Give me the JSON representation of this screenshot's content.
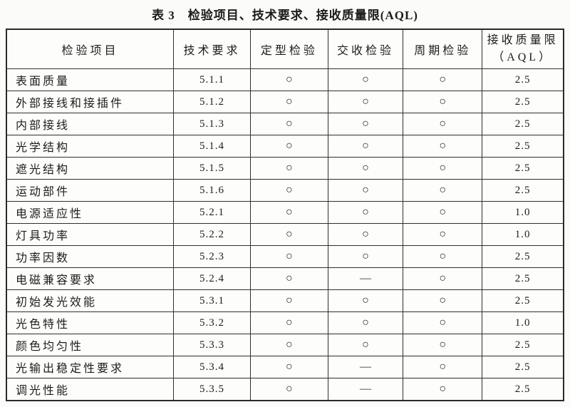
{
  "page": {
    "title": "表 3　检验项目、技术要求、接收质量限(AQL)"
  },
  "table": {
    "headers": {
      "item": "检验项目",
      "requirement": "技术要求",
      "type_test": "定型检验",
      "acceptance_test": "交收检验",
      "periodic_test": "周期检验",
      "aql_line1": "接收质量限",
      "aql_line2": "（AQL）"
    },
    "symbols": {
      "applicable": "○",
      "not_applicable": "—"
    },
    "rows": [
      {
        "item": "表面质量",
        "requirement": "5.1.1",
        "type_test": "○",
        "acceptance_test": "○",
        "periodic_test": "○",
        "aql": "2.5"
      },
      {
        "item": "外部接线和接插件",
        "requirement": "5.1.2",
        "type_test": "○",
        "acceptance_test": "○",
        "periodic_test": "○",
        "aql": "2.5"
      },
      {
        "item": "内部接线",
        "requirement": "5.1.3",
        "type_test": "○",
        "acceptance_test": "○",
        "periodic_test": "○",
        "aql": "2.5"
      },
      {
        "item": "光学结构",
        "requirement": "5.1.4",
        "type_test": "○",
        "acceptance_test": "○",
        "periodic_test": "○",
        "aql": "2.5"
      },
      {
        "item": "遮光结构",
        "requirement": "5.1.5",
        "type_test": "○",
        "acceptance_test": "○",
        "periodic_test": "○",
        "aql": "2.5"
      },
      {
        "item": "运动部件",
        "requirement": "5.1.6",
        "type_test": "○",
        "acceptance_test": "○",
        "periodic_test": "○",
        "aql": "2.5"
      },
      {
        "item": "电源适应性",
        "requirement": "5.2.1",
        "type_test": "○",
        "acceptance_test": "○",
        "periodic_test": "○",
        "aql": "1.0"
      },
      {
        "item": "灯具功率",
        "requirement": "5.2.2",
        "type_test": "○",
        "acceptance_test": "○",
        "periodic_test": "○",
        "aql": "1.0"
      },
      {
        "item": "功率因数",
        "requirement": "5.2.3",
        "type_test": "○",
        "acceptance_test": "○",
        "periodic_test": "○",
        "aql": "2.5"
      },
      {
        "item": "电磁兼容要求",
        "requirement": "5.2.4",
        "type_test": "○",
        "acceptance_test": "—",
        "periodic_test": "○",
        "aql": "2.5"
      },
      {
        "item": "初始发光效能",
        "requirement": "5.3.1",
        "type_test": "○",
        "acceptance_test": "○",
        "periodic_test": "○",
        "aql": "2.5"
      },
      {
        "item": "光色特性",
        "requirement": "5.3.2",
        "type_test": "○",
        "acceptance_test": "○",
        "periodic_test": "○",
        "aql": "1.0"
      },
      {
        "item": "颜色均匀性",
        "requirement": "5.3.3",
        "type_test": "○",
        "acceptance_test": "○",
        "periodic_test": "○",
        "aql": "2.5"
      },
      {
        "item": "光输出稳定性要求",
        "requirement": "5.3.4",
        "type_test": "○",
        "acceptance_test": "—",
        "periodic_test": "○",
        "aql": "2.5"
      },
      {
        "item": "调光性能",
        "requirement": "5.3.5",
        "type_test": "○",
        "acceptance_test": "—",
        "periodic_test": "○",
        "aql": "2.5"
      }
    ]
  }
}
